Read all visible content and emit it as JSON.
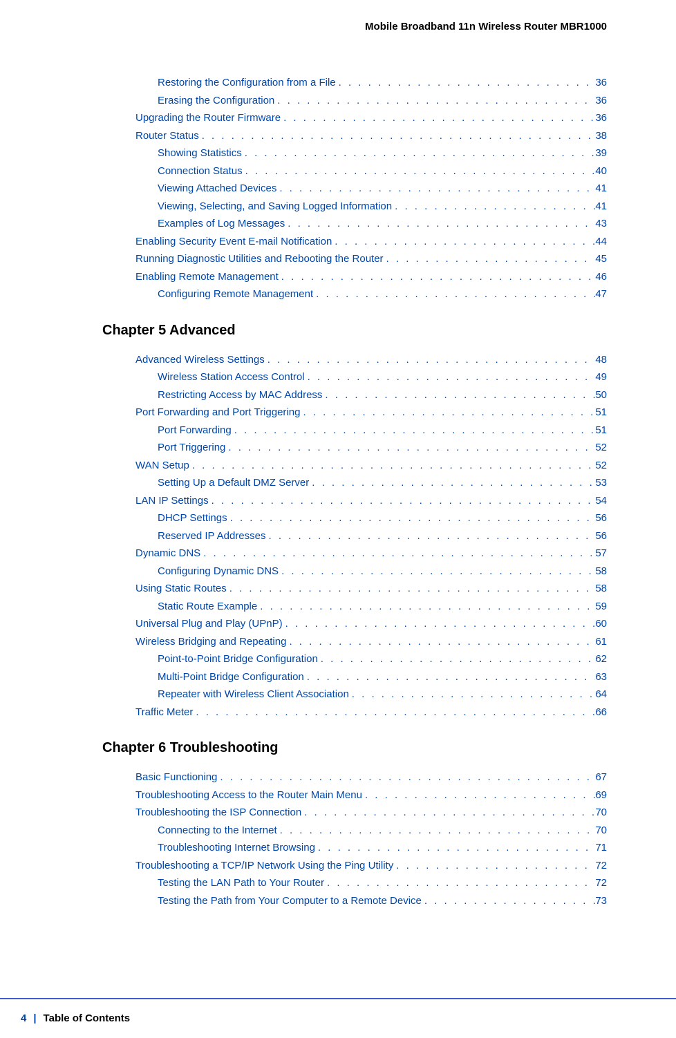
{
  "header": {
    "title": "Mobile Broadband 11n Wireless Router MBR1000"
  },
  "sections": [
    {
      "heading": null,
      "entries": [
        {
          "level": 2,
          "text": "Restoring the Configuration from a File",
          "page": "36"
        },
        {
          "level": 2,
          "text": "Erasing the Configuration",
          "page": "36"
        },
        {
          "level": 1,
          "text": "Upgrading the Router Firmware",
          "page": "36"
        },
        {
          "level": 1,
          "text": "Router Status",
          "page": "38"
        },
        {
          "level": 2,
          "text": "Showing Statistics",
          "page": "39"
        },
        {
          "level": 2,
          "text": "Connection Status",
          "page": "40"
        },
        {
          "level": 2,
          "text": "Viewing Attached Devices",
          "page": "41"
        },
        {
          "level": 2,
          "text": "Viewing, Selecting, and Saving Logged Information",
          "page": "41"
        },
        {
          "level": 2,
          "text": "Examples of Log Messages",
          "page": "43"
        },
        {
          "level": 1,
          "text": "Enabling Security Event E-mail Notification",
          "page": "44"
        },
        {
          "level": 1,
          "text": "Running Diagnostic Utilities and Rebooting the Router",
          "page": "45"
        },
        {
          "level": 1,
          "text": "Enabling Remote Management",
          "page": "46"
        },
        {
          "level": 2,
          "text": "Configuring Remote Management",
          "page": "47"
        }
      ]
    },
    {
      "heading": "Chapter 5    Advanced",
      "entries": [
        {
          "level": 1,
          "text": "Advanced Wireless Settings",
          "page": "48"
        },
        {
          "level": 2,
          "text": "Wireless Station Access Control",
          "page": "49"
        },
        {
          "level": 2,
          "text": "Restricting Access by MAC Address",
          "page": "50"
        },
        {
          "level": 1,
          "text": "Port Forwarding and Port Triggering",
          "page": "51"
        },
        {
          "level": 2,
          "text": "Port Forwarding",
          "page": "51"
        },
        {
          "level": 2,
          "text": "Port Triggering",
          "page": "52"
        },
        {
          "level": 1,
          "text": "WAN Setup",
          "page": "52"
        },
        {
          "level": 2,
          "text": "Setting Up a Default DMZ Server",
          "page": "53"
        },
        {
          "level": 1,
          "text": "LAN IP Settings",
          "page": "54"
        },
        {
          "level": 2,
          "text": "DHCP Settings",
          "page": "56"
        },
        {
          "level": 2,
          "text": "Reserved IP Addresses",
          "page": "56"
        },
        {
          "level": 1,
          "text": "Dynamic DNS",
          "page": "57"
        },
        {
          "level": 2,
          "text": "Configuring Dynamic DNS",
          "page": "58"
        },
        {
          "level": 1,
          "text": "Using Static Routes",
          "page": "58"
        },
        {
          "level": 2,
          "text": "Static Route Example",
          "page": "59"
        },
        {
          "level": 1,
          "text": "Universal Plug and Play (UPnP)",
          "page": "60"
        },
        {
          "level": 1,
          "text": "Wireless Bridging and Repeating",
          "page": "61"
        },
        {
          "level": 2,
          "text": "Point-to-Point Bridge Configuration",
          "page": "62"
        },
        {
          "level": 2,
          "text": "Multi-Point Bridge Configuration",
          "page": "63"
        },
        {
          "level": 2,
          "text": "Repeater with Wireless Client Association",
          "page": "64"
        },
        {
          "level": 1,
          "text": "Traffic Meter",
          "page": "66"
        }
      ]
    },
    {
      "heading": "Chapter 6    Troubleshooting",
      "entries": [
        {
          "level": 1,
          "text": "Basic Functioning",
          "page": "67"
        },
        {
          "level": 1,
          "text": "Troubleshooting Access to the Router Main Menu",
          "page": "69"
        },
        {
          "level": 1,
          "text": "Troubleshooting the ISP Connection",
          "page": "70"
        },
        {
          "level": 2,
          "text": "Connecting to the Internet",
          "page": "70"
        },
        {
          "level": 2,
          "text": "Troubleshooting Internet Browsing",
          "page": "71"
        },
        {
          "level": 1,
          "text": "Troubleshooting a TCP/IP Network Using the Ping Utility",
          "page": "72"
        },
        {
          "level": 2,
          "text": "Testing the LAN Path to Your Router",
          "page": "72"
        },
        {
          "level": 2,
          "text": "Testing the Path from Your Computer to a Remote Device",
          "page": "73"
        }
      ]
    }
  ],
  "footer": {
    "pageNumber": "4",
    "separator": "|",
    "title": "Table of Contents"
  },
  "colors": {
    "link": "#0047ab",
    "text": "#000000",
    "line": "#3a5fcd",
    "background": "#ffffff"
  }
}
